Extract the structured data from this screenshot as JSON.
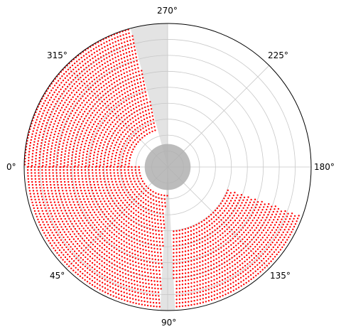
{
  "chart_data": {
    "type": "scatter",
    "projection": "polar",
    "angle_direction": "clockwise",
    "angle_zero_location": "left",
    "angle_ticks": [
      "0°",
      "45°",
      "90°",
      "135°",
      "180°",
      "225°",
      "270°",
      "315°"
    ],
    "radial_gridlines": 8,
    "radial_tick_labels_shown": false,
    "grid": true,
    "legend": "none",
    "series": [
      {
        "color": "#ff0000",
        "marker": "dot",
        "coverage": [
          {
            "theta_start": 280,
            "theta_end": 360,
            "r_min": 0.27,
            "r_max": 1.0
          },
          {
            "theta_start": 0,
            "theta_end": 90,
            "r_min": 0.2,
            "r_max": 1.0
          },
          {
            "theta_start": 90,
            "theta_end": 160,
            "r_min": 0.45,
            "r_max": 1.0
          }
        ]
      }
    ],
    "shaded_regions": [
      {
        "kind": "wedge",
        "theta_start": 270,
        "theta_end": 285,
        "r_min": 0.0,
        "r_max": 1.0,
        "color": "#d9d9d9"
      },
      {
        "kind": "wedge",
        "theta_start": 87,
        "theta_end": 93,
        "r_min": 0.0,
        "r_max": 1.0,
        "color": "#d9d9d9"
      },
      {
        "kind": "disk",
        "r_max": 0.16,
        "color": "#b0b0b0"
      }
    ]
  }
}
